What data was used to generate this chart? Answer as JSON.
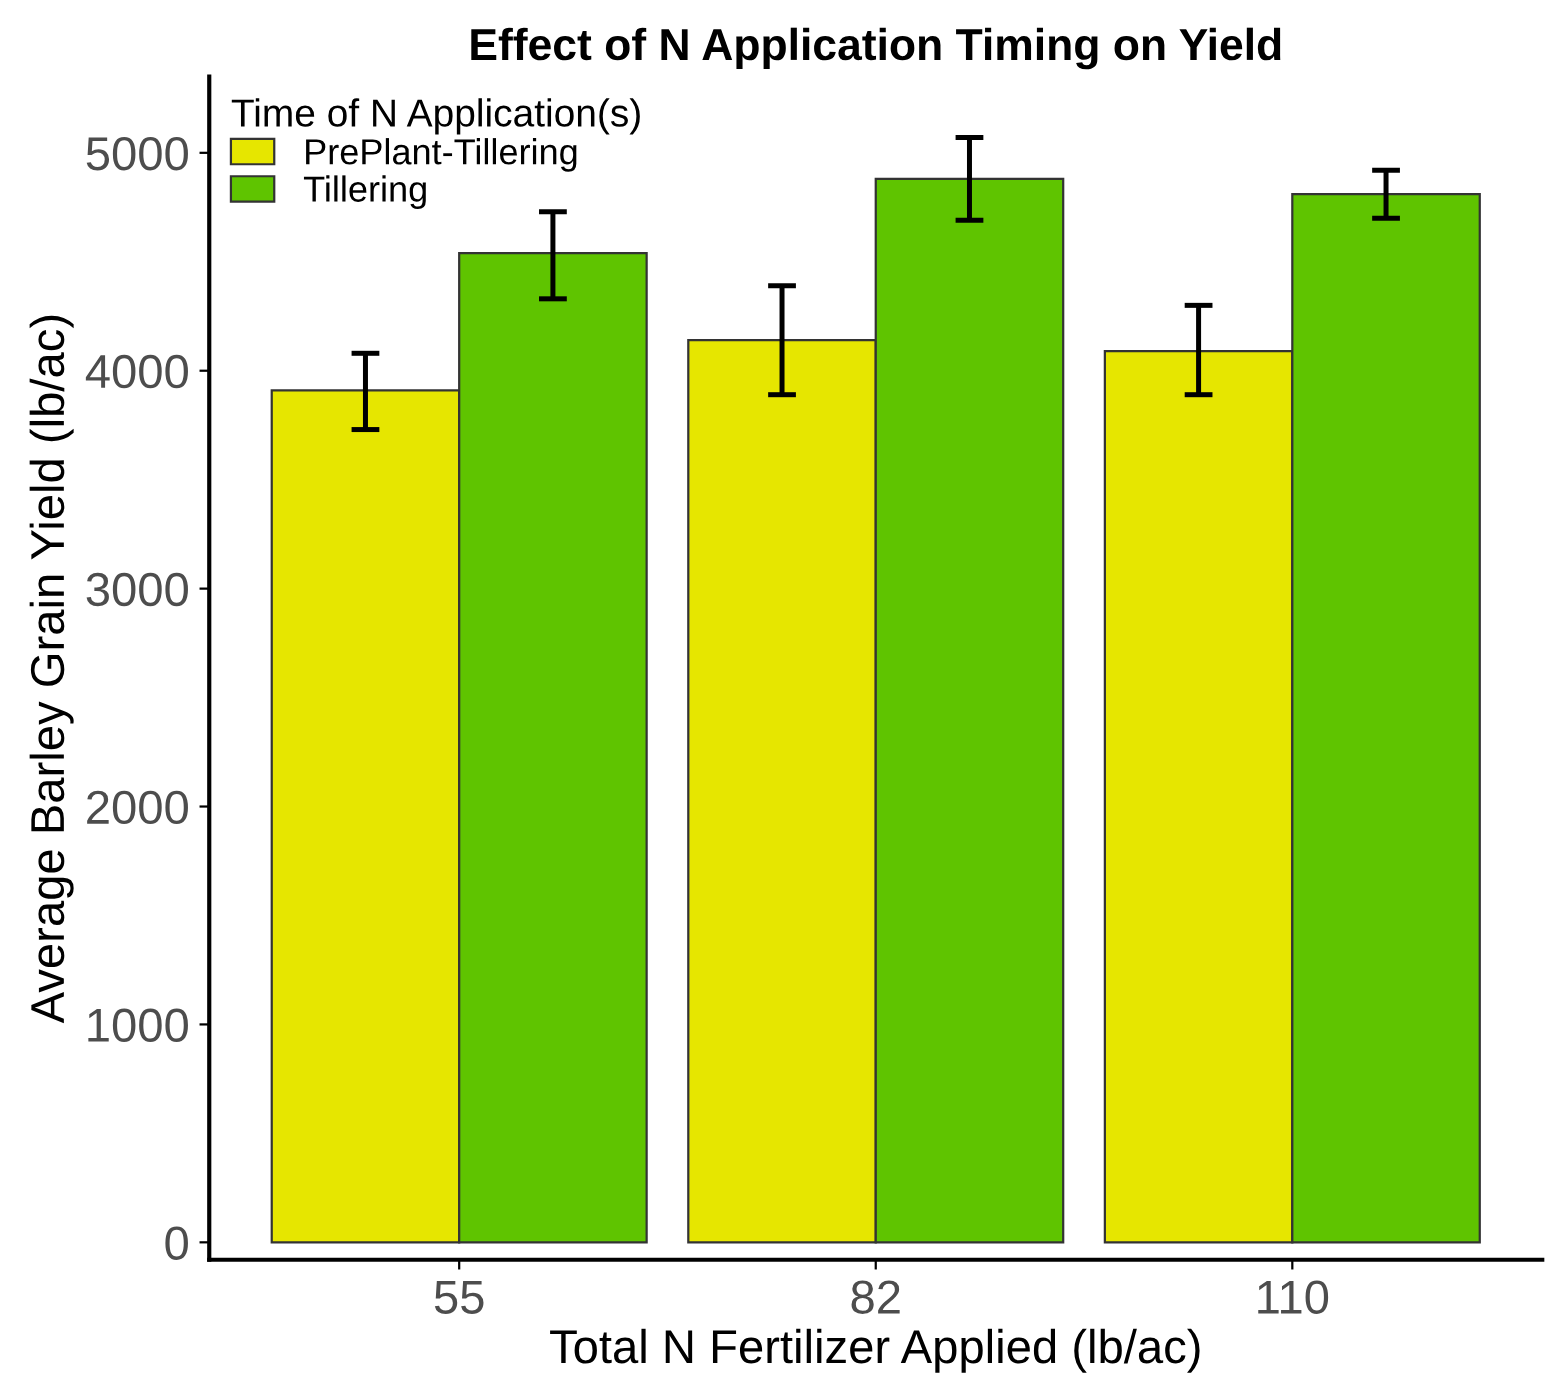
{
  "chart_data": {
    "type": "bar",
    "title": "Effect of N Application Timing on Yield",
    "xlabel": "Total N Fertilizer Applied (lb/ac)",
    "ylabel": "Average Barley Grain Yield (lb/ac)",
    "legend_title": "Time of N Application(s)",
    "categories": [
      "55",
      "82",
      "110"
    ],
    "series": [
      {
        "name": "PrePlant-Tillering",
        "color": "#e6e600",
        "values": [
          3910,
          4140,
          4090
        ],
        "errors": [
          [
            3730,
            4080
          ],
          [
            3890,
            4390
          ],
          [
            3890,
            4300
          ]
        ]
      },
      {
        "name": "Tillering",
        "color": "#5fc400",
        "values": [
          4540,
          4880,
          4810
        ],
        "errors": [
          [
            4330,
            4730
          ],
          [
            4690,
            5070
          ],
          [
            4700,
            4920
          ]
        ]
      }
    ],
    "ylim": [
      -80,
      5350
    ],
    "yticks": [
      0,
      1000,
      2000,
      3000,
      4000,
      5000
    ],
    "grid": false,
    "legend": "top left"
  }
}
